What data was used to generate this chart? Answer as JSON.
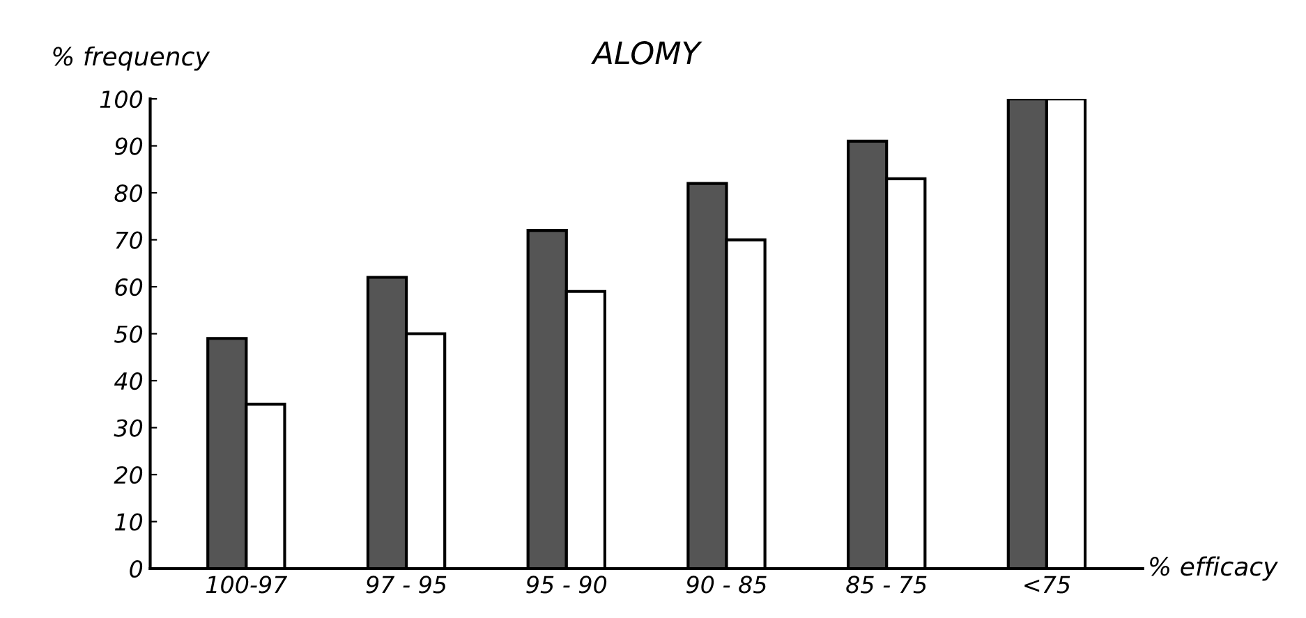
{
  "chart_data": {
    "type": "bar",
    "title": "ALOMY",
    "ylabel": "% frequency",
    "xlabel": "% efficacy",
    "categories": [
      "100-97",
      "97 - 95",
      "95 - 90",
      "90 - 85",
      "85 - 75",
      "<75"
    ],
    "series": [
      {
        "color": "#555555",
        "values": [
          49,
          62,
          72,
          82,
          91,
          100
        ]
      },
      {
        "color": "#ffffff",
        "values": [
          35,
          50,
          59,
          70,
          83,
          100
        ]
      }
    ],
    "ylim": [
      0,
      100
    ],
    "yticks": [
      0,
      10,
      20,
      30,
      40,
      50,
      60,
      70,
      80,
      90,
      100
    ],
    "grid": false,
    "legend": false
  }
}
